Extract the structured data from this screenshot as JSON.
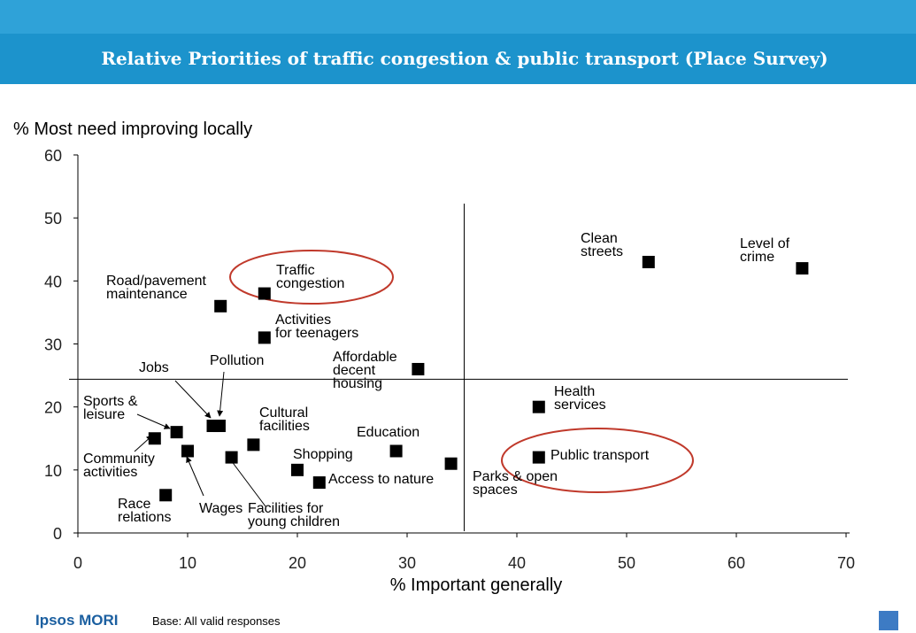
{
  "chart_data": {
    "type": "scatter",
    "title": "Relative Priorities of traffic congestion & public transport (Place Survey)",
    "ylabel": "% Most need improving locally",
    "xlabel": "% Important generally",
    "labels": [
      "Road/pavement\nmaintenance",
      "Traffic\ncongestion",
      "Activities\nfor teenagers",
      "Pollution",
      "Jobs",
      "Affordable\ndecent\nhousing",
      "Sports &\nleisure",
      "Cultural\nfacilities",
      "Community\nactivities",
      "Wages",
      "Race\nrelations",
      "Shopping",
      "Access to nature",
      "Facilities for\nyoung children",
      "Education",
      "Parks & open\nspaces",
      "Public transport",
      "Health\nservices",
      "Clean\nstreets",
      "Level of\ncrime"
    ],
    "x": [
      13,
      17,
      17,
      12.9,
      12.3,
      31,
      9,
      16,
      7,
      10,
      8,
      20,
      22,
      14,
      29,
      34,
      42,
      42,
      52,
      66
    ],
    "values": [
      36,
      38,
      31,
      17,
      17,
      26,
      16,
      14,
      15,
      13,
      6,
      10,
      8,
      12,
      13,
      11,
      12,
      20,
      43,
      42
    ],
    "color": "#000000",
    "xlim": [
      0,
      70
    ],
    "xticks": [
      0,
      10,
      20,
      30,
      40,
      50,
      60,
      70
    ],
    "ylim": [
      0,
      60
    ],
    "yticks": [
      0,
      10,
      20,
      30,
      40,
      50,
      60
    ],
    "reference_lines": {
      "x": 35.2,
      "y": 24.4
    }
  },
  "footer": {
    "logo": "Ipsos MORI",
    "note": "Base: All valid responses"
  }
}
